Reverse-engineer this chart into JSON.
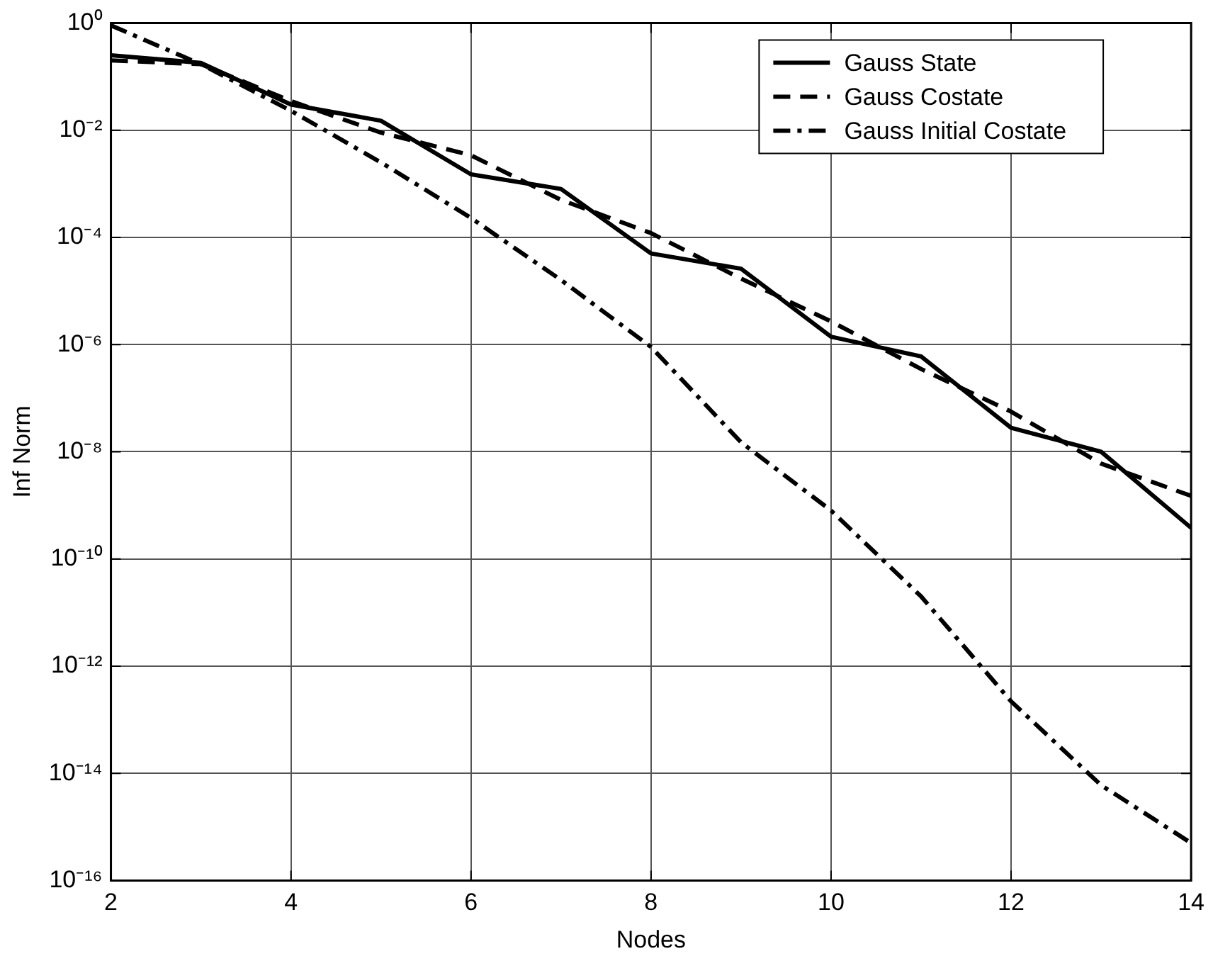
{
  "chart_data": {
    "type": "line",
    "xlabel": "Nodes",
    "ylabel": "Inf Norm",
    "x": [
      2,
      3,
      4,
      5,
      6,
      7,
      8,
      9,
      10,
      11,
      12,
      13,
      14
    ],
    "xlim": [
      2,
      14
    ],
    "xticks": [
      2,
      4,
      6,
      8,
      10,
      12,
      14
    ],
    "log": "y",
    "ylim": [
      1e-16,
      1
    ],
    "yticks": [
      {
        "value": 1e-16,
        "label": "10⁻¹⁶"
      },
      {
        "value": 1e-14,
        "label": "10⁻¹⁴"
      },
      {
        "value": 1e-12,
        "label": "10⁻¹²"
      },
      {
        "value": 1e-10,
        "label": "10⁻¹⁰"
      },
      {
        "value": 1e-08,
        "label": "10⁻⁸"
      },
      {
        "value": 1e-06,
        "label": "10⁻⁶"
      },
      {
        "value": 0.0001,
        "label": "10⁻⁴"
      },
      {
        "value": 0.01,
        "label": "10⁻²"
      },
      {
        "value": 1,
        "label": "10⁰"
      }
    ],
    "grid": true,
    "legend": "top right",
    "marker": "none",
    "series": [
      {
        "name": "Gauss State",
        "color": "#000000",
        "line_style": "solid",
        "values": [
          0.25,
          0.18,
          0.03,
          0.015,
          0.0015,
          0.0008,
          5e-05,
          2.6e-05,
          1.4e-06,
          6e-07,
          2.8e-08,
          1e-08,
          3.8e-10
        ]
      },
      {
        "name": "Gauss Costate",
        "color": "#000000",
        "line_style": "dashed",
        "values": [
          0.2,
          0.17,
          0.035,
          0.009,
          0.0034,
          0.0005,
          0.00012,
          1.7e-05,
          2.7e-06,
          3.5e-07,
          5.6e-08,
          6e-09,
          1.5e-09
        ]
      },
      {
        "name": "Gauss Initial Costate",
        "color": "#000000",
        "line_style": "dashdot",
        "values": [
          0.9,
          0.17,
          0.023,
          0.0025,
          0.00023,
          1.6e-05,
          9e-07,
          1.5e-08,
          8e-10,
          2e-11,
          2.2e-13,
          6e-15,
          5e-16
        ]
      }
    ]
  }
}
